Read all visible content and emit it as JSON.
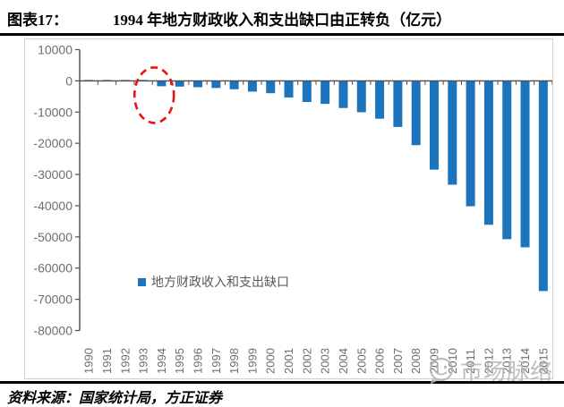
{
  "header": {
    "figure_label": "图表17：",
    "title": "1994 年地方财政收入和支出缺口由正转负（亿元）"
  },
  "legend": {
    "label": "地方财政收入和支出缺口"
  },
  "footer": {
    "source": "资料来源：国家统计局，方正证券"
  },
  "watermark": {
    "text": "市场脉络",
    "icon": "smiley-chat-icon"
  },
  "colors": {
    "bar": "#1b74bc",
    "axis": "#4d4d4d",
    "tick_label": "#6e6e6e",
    "annotation": "#ee1111",
    "frame": "#d0d0d0",
    "rule": "#000000",
    "watermark": "#b0b0b0"
  },
  "chart_data": {
    "type": "bar",
    "title": "1994 年地方财政收入和支出缺口由正转负（亿元）",
    "series_name": "地方财政收入和支出缺口",
    "categories": [
      "1990",
      "1991",
      "1992",
      "1993",
      "1994",
      "1995",
      "1996",
      "1997",
      "1998",
      "1999",
      "2000",
      "2001",
      "2002",
      "2003",
      "2004",
      "2005",
      "2006",
      "2007",
      "2008",
      "2009",
      "2010",
      "2011",
      "2012",
      "2013",
      "2014",
      "2015"
    ],
    "values": [
      100,
      50,
      50,
      60,
      -1727,
      -1843,
      -2039,
      -2277,
      -2689,
      -3440,
      -3961,
      -5331,
      -6767,
      -7380,
      -8699,
      -10054,
      -12128,
      -14767,
      -20599,
      -28442,
      -33271,
      -40187,
      -46110,
      -50729,
      -53339,
      -67353
    ],
    "ylim": [
      -80000,
      10000
    ],
    "ytick_step": 10000,
    "grid": false,
    "legend_position": "inside-bottom-center",
    "annotation": {
      "type": "dashed-ellipse",
      "around_categories": [
        "1993",
        "1994"
      ],
      "meaning": "highlights where the gap turns from positive to negative"
    }
  }
}
